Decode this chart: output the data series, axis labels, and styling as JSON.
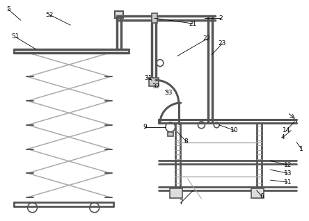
{
  "bg_color": "#ffffff",
  "lc": "#aaaaaa",
  "dc": "#555555",
  "blk": "#222222",
  "figsize": [
    4.44,
    3.18
  ],
  "dpi": 100
}
